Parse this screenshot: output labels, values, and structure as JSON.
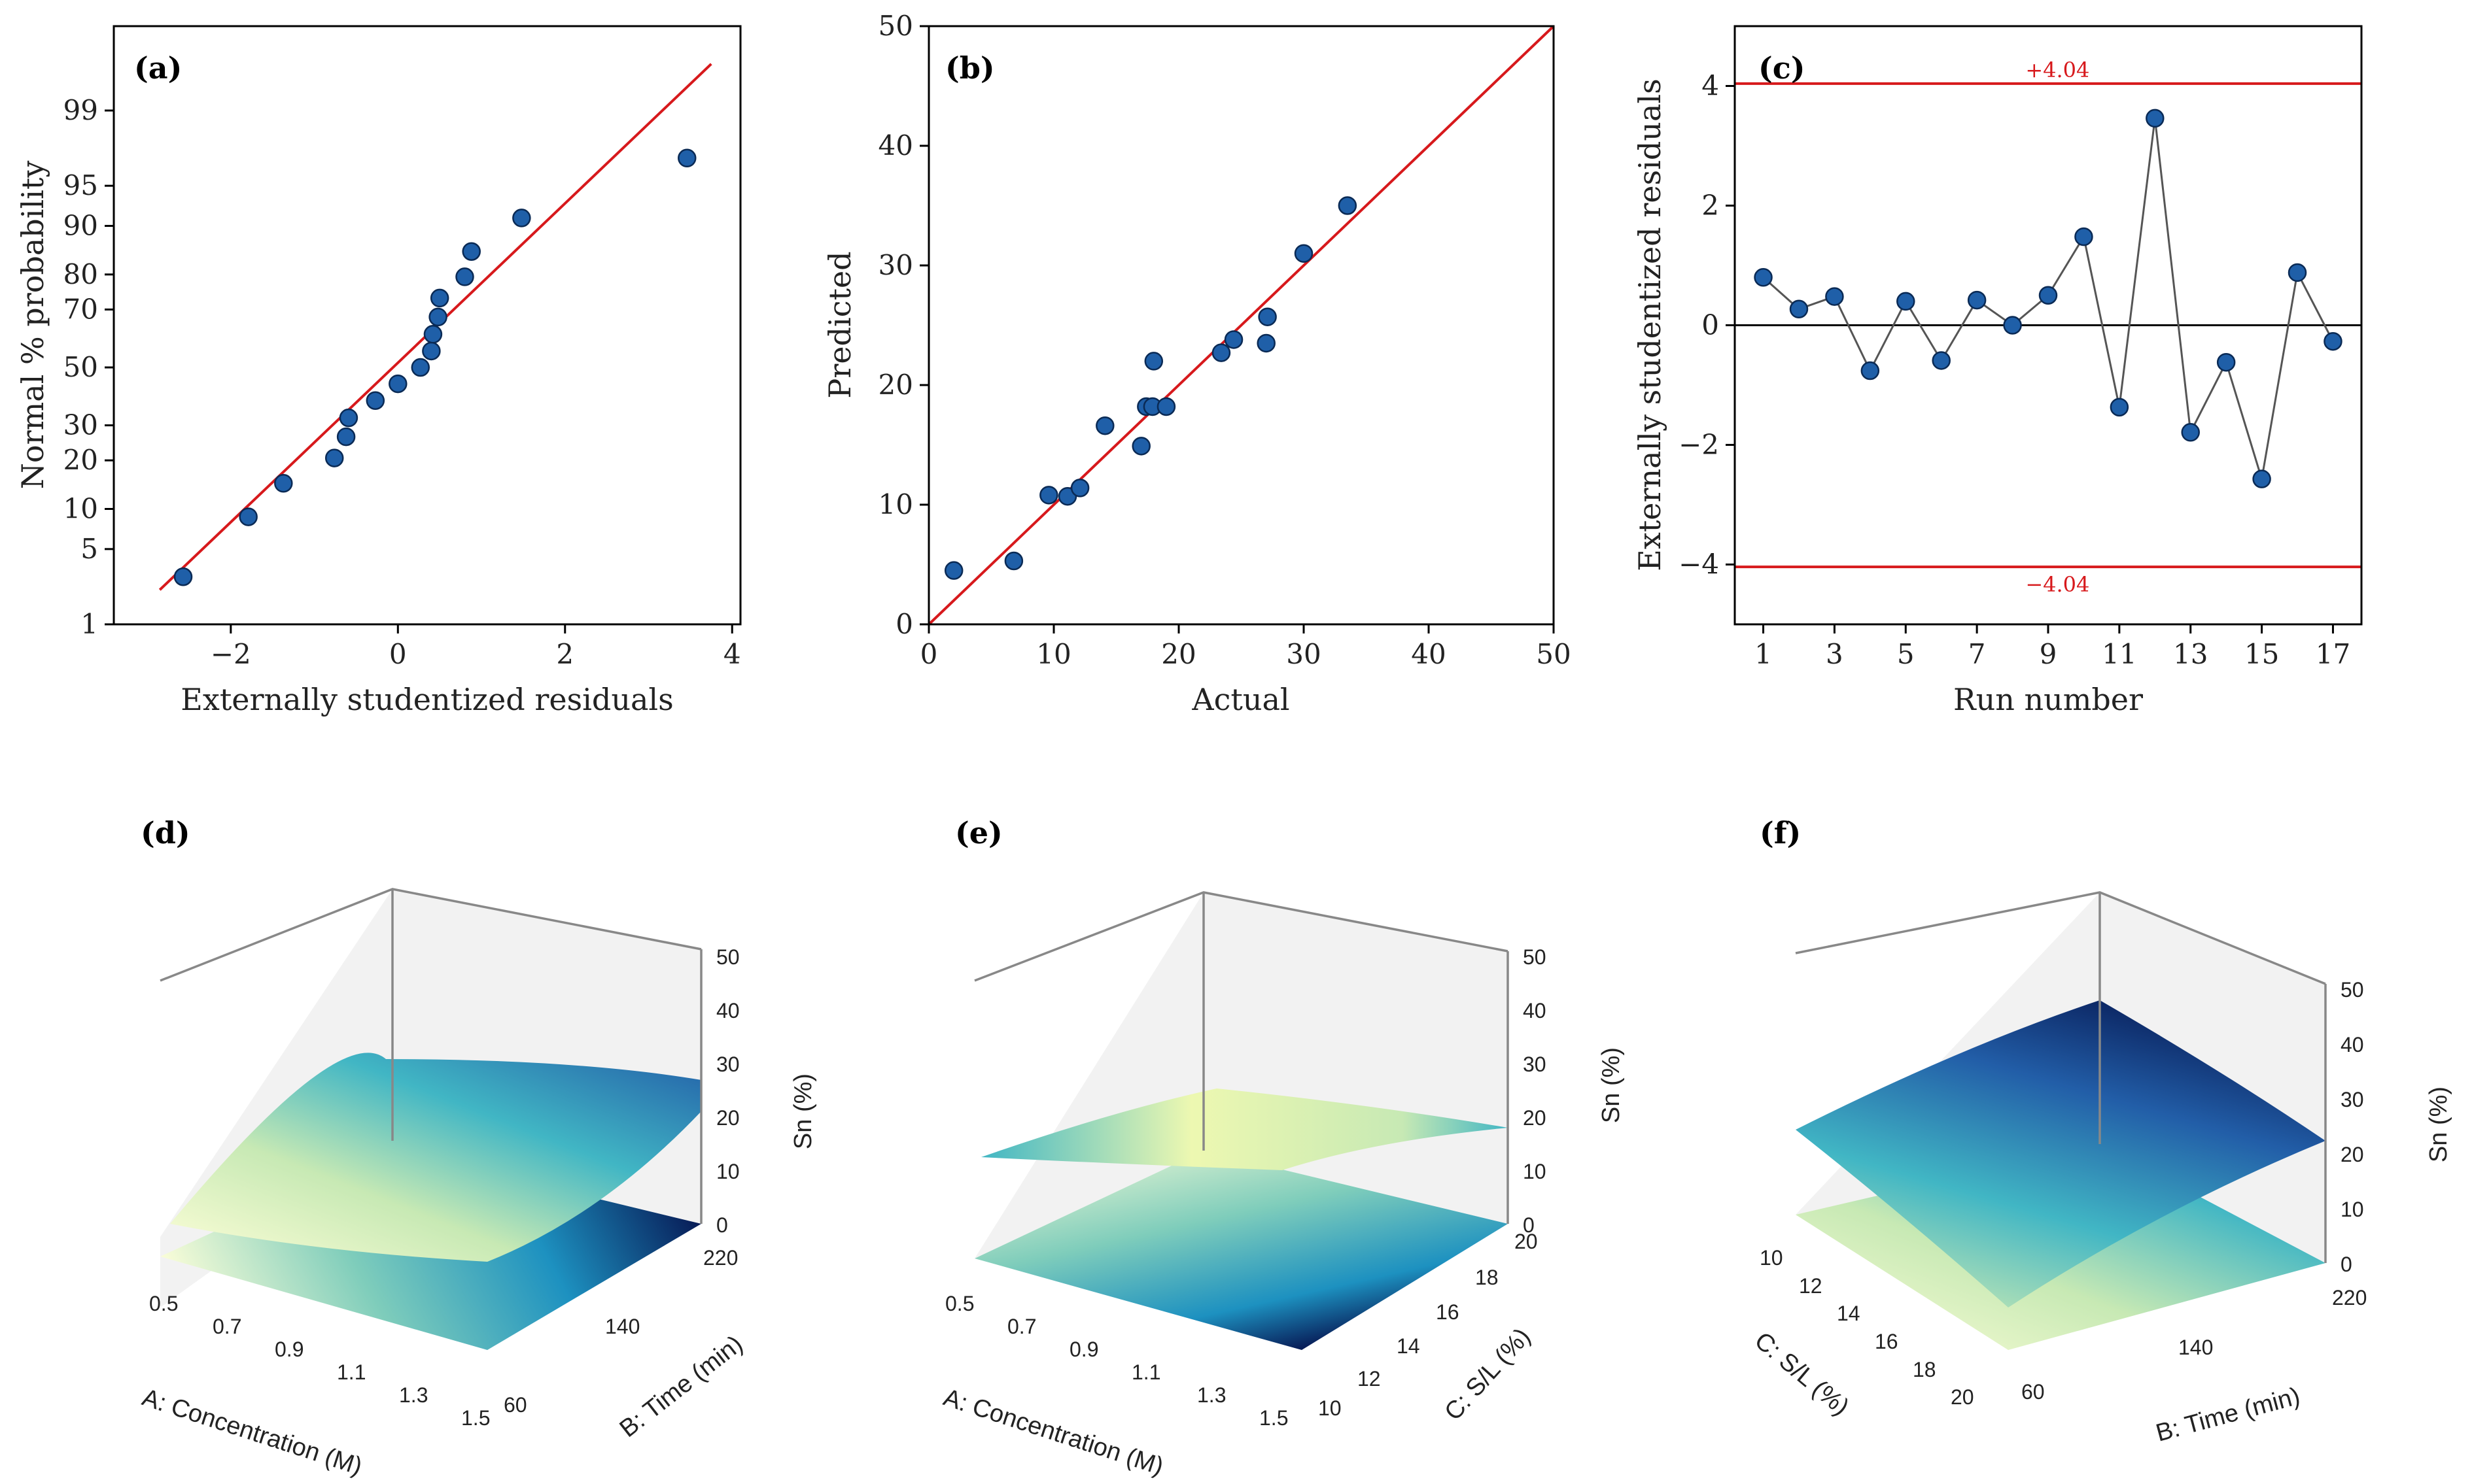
{
  "chart_data": [
    {
      "id": "a",
      "type": "scatter",
      "panel_label": "(a)",
      "xlabel": "Externally studentized residuals",
      "ylabel": "Normal % probability",
      "xlim": [
        -3.4,
        4.1
      ],
      "x_ticks": [
        -2,
        0,
        2,
        4
      ],
      "x_tick_labels": [
        "−2",
        "0",
        "2",
        "4"
      ],
      "y_scale": "probit",
      "ylim": [
        1,
        99.9
      ],
      "y_ticks": [
        1,
        5,
        10,
        20,
        30,
        50,
        70,
        80,
        90,
        95,
        99
      ],
      "y_tick_labels": [
        "1",
        "5",
        "10",
        "20",
        "30",
        "50",
        "70",
        "80",
        "90",
        "95",
        "99"
      ],
      "fit_line": {
        "x": [
          -2.85,
          3.75
        ],
        "y": [
          2.2,
          99.7
        ]
      },
      "points": [
        {
          "x": -2.57,
          "y": 2.9
        },
        {
          "x": -1.79,
          "y": 8.8
        },
        {
          "x": -1.37,
          "y": 14.7
        },
        {
          "x": -0.76,
          "y": 20.6
        },
        {
          "x": -0.62,
          "y": 26.5
        },
        {
          "x": -0.59,
          "y": 32.4
        },
        {
          "x": -0.27,
          "y": 38.2
        },
        {
          "x": 0.0,
          "y": 44.1
        },
        {
          "x": 0.27,
          "y": 50.0
        },
        {
          "x": 0.4,
          "y": 55.9
        },
        {
          "x": 0.42,
          "y": 61.8
        },
        {
          "x": 0.48,
          "y": 67.6
        },
        {
          "x": 0.5,
          "y": 73.5
        },
        {
          "x": 0.8,
          "y": 79.4
        },
        {
          "x": 0.88,
          "y": 85.3
        },
        {
          "x": 1.48,
          "y": 91.2
        },
        {
          "x": 3.46,
          "y": 97.1
        }
      ]
    },
    {
      "id": "b",
      "type": "scatter",
      "panel_label": "(b)",
      "xlabel": "Actual",
      "ylabel": "Predicted",
      "xlim": [
        0,
        50
      ],
      "ylim": [
        0,
        50
      ],
      "x_ticks": [
        0,
        10,
        20,
        30,
        40,
        50
      ],
      "y_ticks": [
        0,
        10,
        20,
        30,
        40,
        50
      ],
      "fit_line": {
        "x": [
          0,
          50
        ],
        "y": [
          0,
          50
        ]
      },
      "points": [
        {
          "x": 2.0,
          "y": 4.5
        },
        {
          "x": 6.8,
          "y": 5.3
        },
        {
          "x": 9.6,
          "y": 10.8
        },
        {
          "x": 11.1,
          "y": 10.7
        },
        {
          "x": 12.1,
          "y": 11.4
        },
        {
          "x": 14.1,
          "y": 16.6
        },
        {
          "x": 17.0,
          "y": 14.9
        },
        {
          "x": 17.4,
          "y": 18.2
        },
        {
          "x": 17.9,
          "y": 18.2
        },
        {
          "x": 18.0,
          "y": 22.0
        },
        {
          "x": 19.0,
          "y": 18.2
        },
        {
          "x": 23.4,
          "y": 22.7
        },
        {
          "x": 24.4,
          "y": 23.8
        },
        {
          "x": 27.0,
          "y": 23.5
        },
        {
          "x": 27.1,
          "y": 25.7
        },
        {
          "x": 30.0,
          "y": 31.0
        },
        {
          "x": 33.5,
          "y": 35.0
        }
      ]
    },
    {
      "id": "c",
      "type": "line",
      "panel_label": "(c)",
      "xlabel": "Run number",
      "ylabel": "Externally studentized residuals",
      "xlim": [
        0.2,
        17.8
      ],
      "ylim": [
        -5,
        5
      ],
      "x_ticks": [
        1,
        3,
        5,
        7,
        9,
        11,
        13,
        15,
        17
      ],
      "y_ticks": [
        -4,
        -2,
        0,
        2,
        4
      ],
      "y_tick_labels": [
        "−4",
        "−2",
        "0",
        "2",
        "4"
      ],
      "limits": [
        {
          "value": 4.04,
          "label": "+4.04"
        },
        {
          "value": -4.04,
          "label": "−4.04"
        }
      ],
      "x": [
        1,
        2,
        3,
        4,
        5,
        6,
        7,
        8,
        9,
        10,
        11,
        12,
        13,
        14,
        15,
        16,
        17
      ],
      "y": [
        0.8,
        0.27,
        0.48,
        -0.76,
        0.4,
        -0.59,
        0.42,
        0.0,
        0.5,
        1.48,
        -1.37,
        3.46,
        -1.79,
        -0.62,
        -2.57,
        0.88,
        -0.27
      ]
    },
    {
      "id": "d",
      "type": "surface",
      "panel_label": "(d)",
      "xlabel": "A: Concentration (M)",
      "ylabel": "B: Time (min)",
      "zlabel": "Sn (%)",
      "x_ticks": [
        "0.5",
        "0.7",
        "0.9",
        "1.1",
        "1.3",
        "1.5"
      ],
      "y_ticks": [
        "60",
        "140",
        "220"
      ],
      "z_ticks": [
        "0",
        "10",
        "20",
        "30",
        "40",
        "50"
      ],
      "zlim": [
        0,
        50
      ]
    },
    {
      "id": "e",
      "type": "surface",
      "panel_label": "(e)",
      "xlabel": "A: Concentration (M)",
      "ylabel": "C: S/L (%)",
      "zlabel": "Sn (%)",
      "x_ticks": [
        "0.5",
        "0.7",
        "0.9",
        "1.1",
        "1.3",
        "1.5"
      ],
      "y_ticks": [
        "10",
        "12",
        "14",
        "16",
        "18",
        "20"
      ],
      "z_ticks": [
        "0",
        "10",
        "20",
        "30",
        "40",
        "50"
      ],
      "zlim": [
        0,
        50
      ]
    },
    {
      "id": "f",
      "type": "surface",
      "panel_label": "(f)",
      "xlabel": "C: S/L (%)",
      "ylabel": "B: Time (min)",
      "zlabel": "Sn (%)",
      "x_ticks": [
        "10",
        "12",
        "14",
        "16",
        "18",
        "20"
      ],
      "y_ticks": [
        "60",
        "140",
        "220"
      ],
      "z_ticks": [
        "0",
        "10",
        "20",
        "30",
        "40",
        "50"
      ],
      "zlim": [
        0,
        50
      ]
    }
  ],
  "colors": {
    "point": "#1f5fa8",
    "fit_line": "#d7191c",
    "surface_low": "#ffffd9",
    "surface_mid": "#41b6c4",
    "surface_high": "#081d58"
  }
}
